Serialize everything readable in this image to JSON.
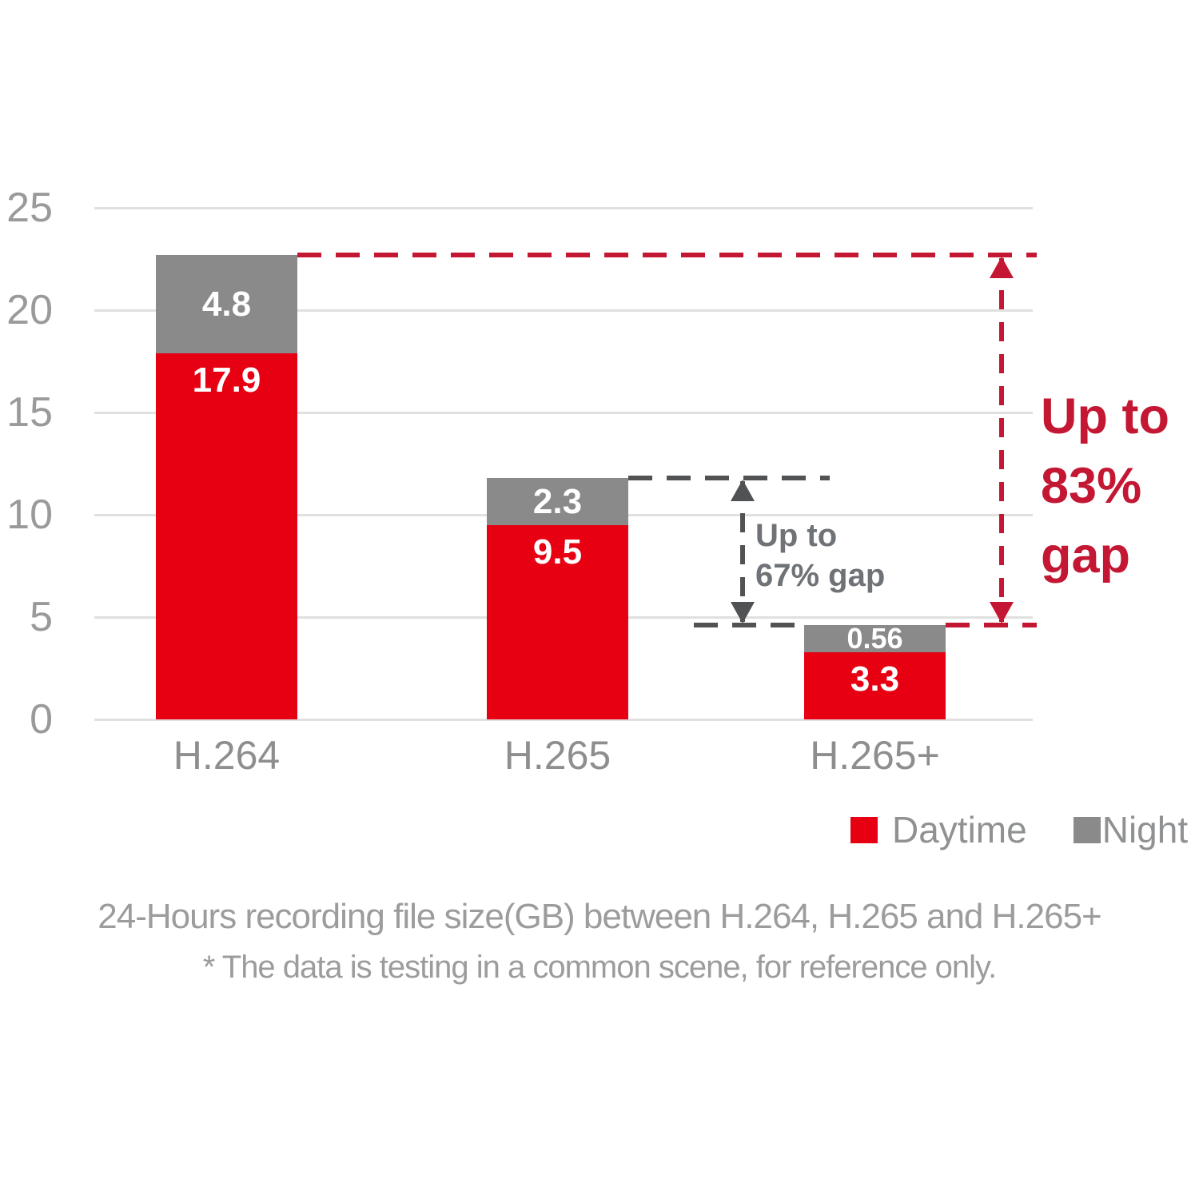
{
  "page": {
    "background": "#ffffff"
  },
  "chart_data": {
    "type": "bar",
    "stacked": true,
    "categories": [
      "H.264",
      "H.265",
      "H.265+"
    ],
    "series": [
      {
        "name": "Daytime",
        "color": "#e60012",
        "values": [
          17.9,
          9.5,
          3.3
        ]
      },
      {
        "name": "Night",
        "color": "#8a8a8b",
        "values": [
          4.8,
          2.3,
          0.56
        ]
      }
    ],
    "value_labels": [
      [
        "17.9",
        "9.5",
        "3.3"
      ],
      [
        "4.8",
        "2.3",
        "0.56"
      ]
    ],
    "ylim": [
      0,
      25
    ],
    "yticks": [
      "0",
      "5",
      "10",
      "15",
      "20",
      "25"
    ],
    "grid": true,
    "legend_position": "bottom-right",
    "legend": [
      {
        "label": "Daytime",
        "color": "#e60012"
      },
      {
        "label": "Night",
        "color": "#8a8a8b"
      }
    ],
    "annotations": [
      {
        "id": "gap67",
        "lines": [
          "Up to",
          "67% gap"
        ],
        "text_color": "#6f7276",
        "line_color": "#515254",
        "from_category": "H.265",
        "to_category": "H.265+"
      },
      {
        "id": "gap83",
        "lines": [
          "Up to",
          "83%",
          "gap"
        ],
        "text_color": "#c31733",
        "line_color": "#c31733",
        "from_category": "H.264",
        "to_category": "H.265+"
      }
    ],
    "caption": "24-Hours recording file size(GB) between H.264, H.265 and H.265+",
    "footnote": "* The data is testing in a common scene, for reference only.",
    "colors": {
      "grid_line": "#e0e0e0",
      "tick_label": "#9a9a9b",
      "category_label": "#8e8e8e",
      "bar_value_label": "#ffffff",
      "caption": "#9c9c9c",
      "legend_label": "#8f9193"
    }
  }
}
